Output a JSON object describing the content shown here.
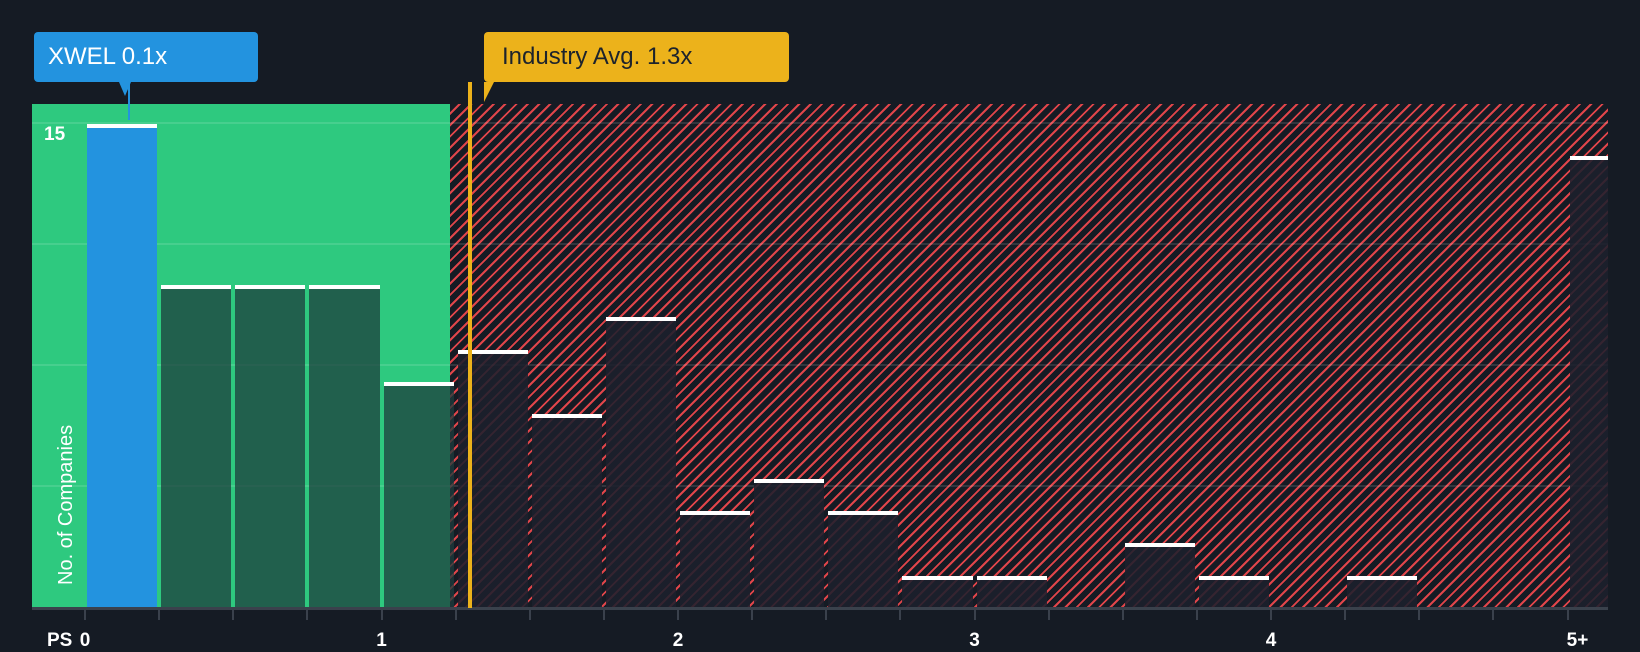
{
  "chart_data": {
    "type": "bar",
    "title": "",
    "xlabel": "PS",
    "ylabel": "No. of Companies",
    "x_tick_labels": [
      "0",
      "1",
      "2",
      "3",
      "4",
      "5+"
    ],
    "y_tick_labels": [
      "15"
    ],
    "ylim": [
      0,
      15.5
    ],
    "bin_width": 0.25,
    "categories": [
      "0-0.25",
      "0.25-0.5",
      "0.5-0.75",
      "0.75-1",
      "1-1.25",
      "1.25-1.5",
      "1.5-1.75",
      "1.75-2",
      "2-2.25",
      "2.25-2.5",
      "2.5-2.75",
      "2.75-3",
      "3-3.25",
      "3.25-3.5",
      "3.5-3.75",
      "3.75-4",
      "4-4.25",
      "4.25-4.5",
      "4.5-4.75",
      "4.75-5",
      "5+"
    ],
    "values": [
      15,
      10,
      10,
      10,
      7,
      8,
      6,
      9,
      3,
      4,
      3,
      1,
      1,
      0,
      2,
      1,
      0,
      1,
      0,
      0,
      14
    ],
    "subject": {
      "label": "XWEL 0.1x",
      "ticker": "XWEL",
      "value": 0.1,
      "bin_index": 0
    },
    "industry_avg": {
      "label": "Industry Avg. 1.3x",
      "value": 1.3
    },
    "zones": {
      "below_avg_color": "#2ec97f",
      "above_avg_color": "#e0454a"
    },
    "grid": true,
    "legend": null
  },
  "colors": {
    "background": "#151b24",
    "subject_bar": "#2393df",
    "industry_avg": "#ecb21b",
    "good_zone": "#2ec97f",
    "bad_zone_stripes": "#e0454a"
  },
  "labels": {
    "subject_callout": "XWEL 0.1x",
    "industry_callout": "Industry Avg. 1.3x",
    "y_axis": "No. of Companies",
    "x_axis_prefix": "PS",
    "y_max_tick": "15"
  }
}
